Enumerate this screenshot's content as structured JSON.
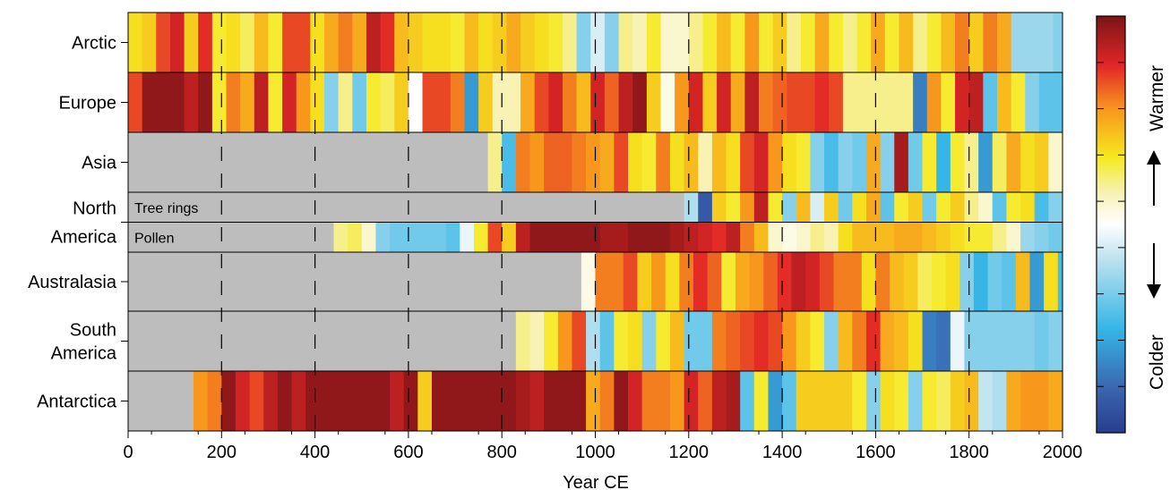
{
  "chart_data": {
    "type": "heatmap",
    "title": "",
    "xlabel": "Year CE",
    "ylabel": "",
    "xlim": [
      0,
      2000
    ],
    "x_ticks": [
      0,
      200,
      400,
      600,
      800,
      1000,
      1200,
      1400,
      1600,
      1800,
      2000
    ],
    "x_tick_labels": [
      "0",
      "200",
      "400",
      "600",
      "800",
      "1000",
      "1200",
      "1400",
      "1600",
      "1800",
      "2000"
    ],
    "dashed_gridlines_x": [
      200,
      400,
      600,
      800,
      1000,
      1200,
      1400,
      1600,
      1800
    ],
    "bin_width_years": 30,
    "value_scale": "anomaly, -1 = coldest, +1 = warmest",
    "colorbar": {
      "warm_label": "Warmer",
      "cold_label": "Colder",
      "orientation": "vertical"
    },
    "no_data_color": "#bdbdbd",
    "regions": [
      {
        "name": "Arctic",
        "rows": [
          {
            "sub_label": "",
            "start": 0,
            "values": [
              0.35,
              0.4,
              0.7,
              0.8,
              0.4,
              0.75,
              0.3,
              0.35,
              0.25,
              0.45,
              0.3,
              0.7,
              0.7,
              0.35,
              0.5,
              0.6,
              0.5,
              0.85,
              0.75,
              0.45,
              0.4,
              0.35,
              0.35,
              0.3,
              0.45,
              0.35,
              0.4,
              0.5,
              0.4,
              0.35,
              0.3,
              0.2,
              -0.3,
              -0.1,
              -0.3,
              0.2,
              0.15,
              0.3,
              0.1,
              0.1,
              0.2,
              0.3,
              0.45,
              0.3,
              0.55,
              0.3,
              0.4,
              0.2,
              0.3,
              0.5,
              0.3,
              0.2,
              0.3,
              0.5,
              0.3,
              0.45,
              0.2,
              0.3,
              0.45,
              0.6,
              0.4,
              0.6,
              0.5,
              -0.25,
              -0.25,
              -0.25,
              -0.3,
              -0.3,
              -0.3,
              -0.35,
              -0.4,
              -0.4,
              -0.4,
              0.25,
              0.35,
              0.3,
              0.3,
              0.35,
              0.45,
              0.25,
              0.3,
              0.4,
              0.5,
              0.1,
              0.1,
              -0.4,
              -0.4,
              -0.55,
              -0.3,
              -0.45,
              -0.3,
              0.3,
              -0.2,
              -0.35,
              -0.45,
              0.3,
              0.3,
              0.2,
              0.85,
              0.95
            ]
          }
        ]
      },
      {
        "name": "Europe",
        "rows": [
          {
            "sub_label": "",
            "start": 0,
            "values": [
              0.7,
              0.95,
              0.95,
              0.95,
              0.85,
              0.95,
              0.3,
              0.6,
              0.5,
              0.85,
              0.3,
              0.8,
              0.55,
              0.35,
              -0.3,
              0.2,
              -0.35,
              0.3,
              0.25,
              0.4,
              0.0,
              0.7,
              0.7,
              0.6,
              -0.6,
              0.4,
              0.15,
              0.15,
              0.5,
              0.7,
              0.8,
              0.6,
              0.45,
              0.8,
              0.65,
              0.85,
              0.95,
              0.4,
              0.05,
              0.55,
              0.8,
              0.4,
              0.8,
              0.5,
              0.85,
              0.6,
              0.65,
              0.7,
              0.7,
              0.75,
              0.7,
              0.2,
              0.2,
              0.2,
              0.2,
              0.2,
              -0.7,
              0.55,
              0.3,
              0.8,
              0.85,
              -0.4,
              0.45,
              0.3,
              -0.3,
              -0.4,
              -0.4,
              0.55,
              0.6,
              -0.15,
              0.6,
              0.7,
              -0.7,
              0.6,
              0.5,
              0.75,
              0.3,
              0.45,
              -0.25,
              0.5,
              0.55,
              0.45,
              0.35,
              -0.3,
              -0.8,
              -0.55,
              0.45,
              0.3,
              0.45,
              -0.4,
              0.4,
              -0.5,
              0.55,
              0.3,
              0.1,
              0.45,
              0.0,
              0.6,
              0.7,
              0.8
            ]
          }
        ]
      },
      {
        "name": "Asia",
        "rows": [
          {
            "sub_label": "",
            "start": 770,
            "values": [
              0.2,
              -0.45,
              0.6,
              0.55,
              0.65,
              0.65,
              0.6,
              0.55,
              0.5,
              0.7,
              0.35,
              0.3,
              0.6,
              0.35,
              0.45,
              0.15,
              0.45,
              0.35,
              0.7,
              0.8,
              0.55,
              0.35,
              0.3,
              -0.3,
              -0.45,
              -0.3,
              -0.35,
              0.5,
              -0.3,
              0.9,
              -0.35,
              0.3,
              -0.5,
              0.3,
              0.2,
              -0.6,
              0.25,
              0.5,
              0.35,
              0.4,
              0.1,
              0.4,
              -0.55,
              0.05,
              0.3,
              0.6,
              0.4,
              0.1,
              0.05,
              0.2,
              0.35,
              0.4,
              0.45,
              0.45,
              0.2,
              0.35,
              0.8,
              0.4,
              0.35,
              0.6,
              0.8,
              0.95
            ]
          }
        ]
      },
      {
        "name": "North America",
        "rows": [
          {
            "sub_label": "Tree rings",
            "start": 1190,
            "values": [
              -0.2,
              -0.85,
              0.4,
              0.3,
              0.55,
              0.85,
              0.3,
              -0.3,
              0.45,
              -0.1,
              0.4,
              -0.35,
              0.35,
              0.5,
              -0.4,
              0.3,
              0.4,
              -0.35,
              0.3,
              0.4,
              0.2,
              0.1,
              -0.4,
              0.3,
              0.35,
              -0.45,
              -0.3,
              0.2,
              0.5,
              0.3,
              -0.3,
              0.45,
              -0.8,
              -0.3,
              0.2,
              -0.35,
              0.4,
              0.6,
              0.3
            ]
          },
          {
            "sub_label": "Pollen",
            "start": 440,
            "values": [
              0.2,
              0.25,
              0.1,
              -0.3,
              -0.35,
              -0.35,
              -0.35,
              -0.35,
              -0.4,
              -0.05,
              0.3,
              0.7,
              0.4,
              0.85,
              0.95,
              0.95,
              0.95,
              0.95,
              0.95,
              0.9,
              0.9,
              0.95,
              0.95,
              0.95,
              0.9,
              0.85,
              0.8,
              0.75,
              0.85,
              0.6,
              0.45,
              0.1,
              0.05,
              0.1,
              0.2,
              0.15,
              0.35,
              0.45,
              0.45,
              0.45,
              0.5,
              0.5,
              0.45,
              0.4,
              0.35,
              0.3,
              0.3,
              0.2,
              0.1,
              -0.25,
              -0.3,
              -0.35,
              0.45,
              0.45,
              0.4,
              0.35,
              0.1,
              -0.8,
              -0.85,
              0.4,
              0.5,
              0.3,
              0.0
            ]
          }
        ]
      },
      {
        "name": "Australasia",
        "rows": [
          {
            "sub_label": "",
            "start": 970,
            "values": [
              0.05,
              0.6,
              0.6,
              0.7,
              0.4,
              0.55,
              0.35,
              0.6,
              0.75,
              0.65,
              0.3,
              0.5,
              0.55,
              0.65,
              0.75,
              0.85,
              0.8,
              0.7,
              0.6,
              0.6,
              0.35,
              0.6,
              0.45,
              0.4,
              0.25,
              0.3,
              0.35,
              -0.3,
              -0.5,
              -0.35,
              -0.4,
              0.45,
              -0.6,
              0.35,
              -0.45,
              -0.35,
              -0.3,
              0.4,
              -0.35,
              0.3,
              -0.3,
              -0.4,
              -0.6,
              -0.35,
              -0.5,
              -0.35,
              0.25,
              0.3,
              0.3,
              0.3,
              0.3,
              0.95
            ]
          }
        ]
      },
      {
        "name": "South America",
        "rows": [
          {
            "sub_label": "",
            "start": 830,
            "values": [
              0.2,
              0.15,
              0.3,
              0.55,
              0.7,
              -0.2,
              -0.4,
              0.3,
              0.35,
              -0.3,
              0.3,
              0.45,
              -0.35,
              -0.35,
              0.6,
              0.65,
              0.7,
              0.75,
              0.7,
              0.55,
              0.4,
              0.3,
              -0.3,
              0.45,
              0.6,
              0.75,
              0.5,
              0.45,
              0.35,
              -0.7,
              -0.75,
              -0.05,
              -0.3,
              -0.3,
              -0.3,
              -0.3,
              -0.3,
              -0.35,
              -0.3,
              -0.3,
              0.5,
              0.45,
              0.4,
              0.5,
              0.7,
              0.65,
              -0.3,
              -0.3,
              -0.3,
              -0.3,
              -0.3,
              -0.35,
              0.4,
              0.5,
              0.55,
              0.45,
              0.6,
              0.7,
              0.65,
              0.55,
              0.5,
              0.55,
              0.6,
              0.6,
              0.55,
              0.4,
              0.5
            ]
          }
        ]
      },
      {
        "name": "Antarctica",
        "rows": [
          {
            "sub_label": "",
            "start": 140,
            "values": [
              0.55,
              0.6,
              0.95,
              0.8,
              0.7,
              0.85,
              0.95,
              0.85,
              0.95,
              0.95,
              0.95,
              0.95,
              0.95,
              0.95,
              0.85,
              0.95,
              0.4,
              0.95,
              0.95,
              0.95,
              0.95,
              0.95,
              0.95,
              0.9,
              0.85,
              0.95,
              0.95,
              0.95,
              0.5,
              0.6,
              0.95,
              0.8,
              0.6,
              0.6,
              0.55,
              0.8,
              0.65,
              0.85,
              0.9,
              -0.4,
              0.3,
              -0.6,
              -0.4,
              0.4,
              0.4,
              0.4,
              0.4,
              0.3,
              -0.3,
              0.35,
              0.3,
              -0.3,
              0.3,
              0.25,
              0.4,
              0.45,
              -0.15,
              -0.2,
              0.5,
              0.55,
              0.55,
              0.5,
              0.5,
              0.45,
              -0.45,
              -0.35,
              -0.3,
              -0.25,
              0.5,
              -0.45,
              -0.55,
              0.4,
              -0.8,
              0.4
            ]
          }
        ]
      }
    ]
  }
}
